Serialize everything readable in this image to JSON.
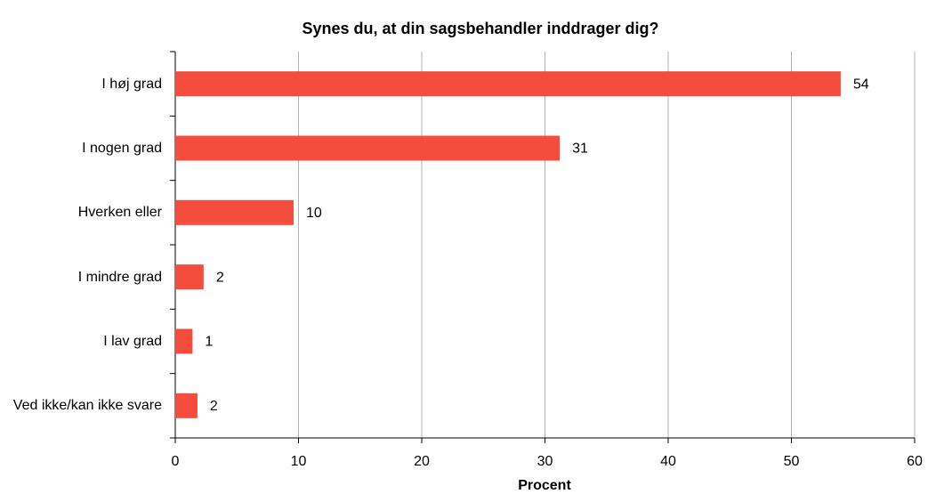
{
  "chart_data": {
    "type": "hbar",
    "title": "Synes du, at din sagsbehandler inddrager dig?",
    "xlabel": "Procent",
    "categories": [
      "I høj grad",
      "I nogen grad",
      "Hverken eller",
      "I mindre grad",
      "I lav grad",
      "Ved ikke/kan ikke svare"
    ],
    "values": [
      54,
      31.2,
      9.6,
      2.3,
      1.4,
      1.8
    ],
    "value_labels": [
      "54",
      "31",
      "10",
      "2",
      "1",
      "2"
    ],
    "color": "#f44c3d",
    "xlim": [
      0,
      60
    ],
    "xticks": [
      0,
      10,
      20,
      30,
      40,
      50,
      60
    ],
    "grid": true
  }
}
